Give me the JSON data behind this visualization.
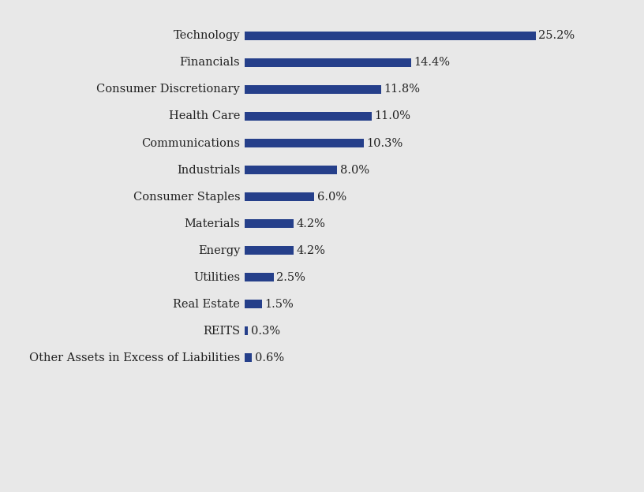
{
  "categories": [
    "Technology",
    "Financials",
    "Consumer Discretionary",
    "Health Care",
    "Communications",
    "Industrials",
    "Consumer Staples",
    "Materials",
    "Energy",
    "Utilities",
    "Real Estate",
    "REITS",
    "Other Assets in Excess of Liabilities"
  ],
  "values": [
    25.2,
    14.4,
    11.8,
    11.0,
    10.3,
    8.0,
    6.0,
    4.2,
    4.2,
    2.5,
    1.5,
    0.3,
    0.6
  ],
  "bar_color": "#253f8a",
  "background_color": "#e8e8e8",
  "label_fontsize": 10.5,
  "value_fontsize": 10.5,
  "bar_height": 0.32,
  "xlim": [
    0,
    29
  ]
}
